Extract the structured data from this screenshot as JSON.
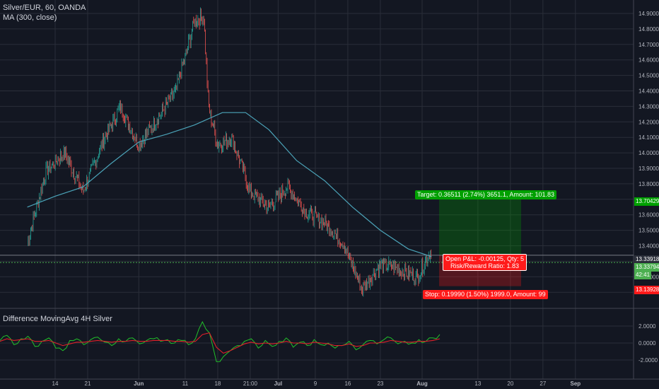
{
  "chart_data": [
    {
      "type": "line",
      "title": "Silver/EUR, 60, OANDA",
      "indicator": "MA (300, close)",
      "ylim": [
        13.05,
        14.95
      ],
      "y_ticks": [
        "14.90000",
        "14.80000",
        "14.70000",
        "14.60000",
        "14.50000",
        "14.40000",
        "14.30000",
        "14.20000",
        "14.10000",
        "14.00000",
        "13.90000",
        "13.80000",
        "13.70000",
        "13.60000",
        "13.50000",
        "13.40000",
        "13.30000",
        "13.20000",
        "13.10000"
      ],
      "x_ticks": [
        "14",
        "21",
        "Jun",
        "11",
        "18",
        "21:00",
        "Jul",
        "9",
        "16",
        "23",
        "Aug",
        "13",
        "20",
        "27",
        "Sep"
      ],
      "series": [
        {
          "name": "price",
          "x": [
            "May 8",
            "May 12",
            "May 16",
            "May 20",
            "May 24",
            "May 28",
            "Jun 1",
            "Jun 5",
            "Jun 9",
            "Jun 13",
            "Jun 15",
            "Jun 16",
            "Jun 18",
            "Jun 21",
            "Jun 25",
            "Jun 29",
            "Jul 3",
            "Jul 7",
            "Jul 11",
            "Jul 15",
            "Jul 19",
            "Jul 23",
            "Jul 27",
            "Jul 31",
            "Aug 3"
          ],
          "values": [
            13.42,
            13.88,
            14.0,
            13.75,
            14.05,
            14.3,
            14.05,
            14.22,
            14.4,
            14.85,
            14.88,
            14.3,
            14.05,
            14.1,
            13.75,
            13.65,
            13.78,
            13.62,
            13.55,
            13.42,
            13.12,
            13.28,
            13.25,
            13.2,
            13.38
          ]
        },
        {
          "name": "MA 300",
          "x": [
            "May 8",
            "May 14",
            "May 20",
            "May 26",
            "Jun 1",
            "Jun 7",
            "Jun 13",
            "Jun 19",
            "Jun 24",
            "Jun 29",
            "Jul 5",
            "Jul 11",
            "Jul 17",
            "Jul 23",
            "Jul 29",
            "Aug 3"
          ],
          "values": [
            13.65,
            13.72,
            13.78,
            13.93,
            14.07,
            14.12,
            14.18,
            14.26,
            14.26,
            14.15,
            13.95,
            13.82,
            13.65,
            13.5,
            13.38,
            13.33
          ]
        }
      ],
      "price_labels": [
        {
          "text": "13.70429",
          "color": "#00a000"
        },
        {
          "text": "13.33918",
          "color": "#2a2e39"
        },
        {
          "text": "13.33794",
          "color": "#4caf50"
        },
        {
          "text": "42:41",
          "color": "#4caf50"
        },
        {
          "text": "13.13928",
          "color": "#ff1a1a"
        }
      ],
      "position": {
        "target_label": "Target: 0.36511 (2.74%) 3651.1, Amount: 101.83",
        "pnl_label": "Open P&L: -0.00125, Qty: 5",
        "ratio_label": "Risk/Reward Ratio: 1.83",
        "stop_label": "Stop: 0.19990 (1.50%) 1999.0, Amount: 99",
        "entry": 13.33918,
        "target": 13.70429,
        "stop": 13.13928,
        "target_color": "#00a000",
        "stop_color": "#ff1a1a"
      }
    },
    {
      "type": "line",
      "title": "Difference MovingAvg 4H Silver",
      "ylim": [
        -2.4,
        2.4
      ],
      "y_ticks": [
        "2.0000",
        "0.0000",
        "-2.0000"
      ],
      "series": [
        {
          "name": "difference",
          "color": "#22c02a",
          "values": [
            0.3,
            0.9,
            -0.2,
            0.5,
            0.8,
            -0.4,
            0.2,
            0.6,
            -0.6,
            -0.9,
            0.3,
            0.5,
            -0.2,
            0.4,
            0.7,
            0.1,
            -0.3,
            0.5,
            0.2,
            0.6,
            -0.1,
            0.3,
            0.5,
            0.2,
            0.4,
            0.0,
            0.3,
            -0.2,
            0.5,
            2.5,
            1.2,
            -2.2,
            -1.6,
            -0.9,
            -0.3,
            0.2,
            0.5,
            -0.6,
            0.3,
            -0.4,
            0.2,
            0.6,
            -0.5,
            0.1,
            -0.3,
            0.4,
            -0.2,
            0.0,
            -0.6,
            -0.3,
            0.2,
            -0.8,
            -0.2,
            0.3,
            -0.1,
            0.4,
            0.6,
            -0.1,
            0.2,
            0.0,
            0.4,
            0.2,
            0.6,
            1.0
          ]
        },
        {
          "name": "signal",
          "color": "#e0202a",
          "values": [
            0.2,
            0.5,
            0.3,
            0.4,
            0.5,
            0.2,
            0.2,
            0.3,
            0.0,
            -0.3,
            -0.1,
            0.1,
            0.1,
            0.2,
            0.3,
            0.2,
            0.1,
            0.2,
            0.2,
            0.3,
            0.2,
            0.2,
            0.3,
            0.3,
            0.3,
            0.2,
            0.2,
            0.1,
            0.2,
            1.0,
            1.2,
            -0.5,
            -1.2,
            -0.9,
            -0.5,
            -0.1,
            0.1,
            -0.1,
            0.0,
            -0.1,
            0.0,
            0.2,
            0.0,
            0.0,
            -0.1,
            0.1,
            0.0,
            -0.1,
            -0.3,
            -0.3,
            -0.1,
            -0.4,
            -0.3,
            0.0,
            0.0,
            0.1,
            0.3,
            0.2,
            0.1,
            0.1,
            0.2,
            0.2,
            0.3,
            0.5
          ]
        }
      ]
    }
  ]
}
